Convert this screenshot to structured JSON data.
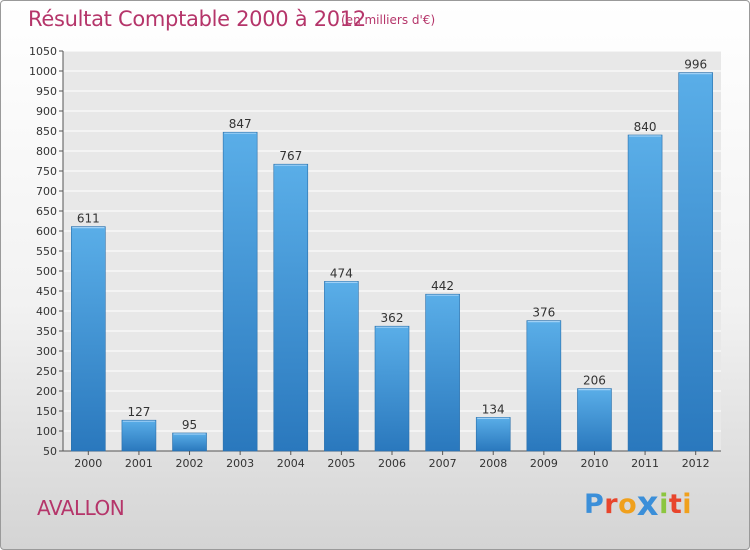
{
  "chart_data": {
    "type": "bar",
    "title": "Résultat Comptable 2000 à 2012",
    "subtitle": "(en milliers d'€)",
    "categories": [
      "2000",
      "2001",
      "2002",
      "2003",
      "2004",
      "2005",
      "2006",
      "2007",
      "2008",
      "2009",
      "2010",
      "2011",
      "2012"
    ],
    "values": [
      611,
      127,
      95,
      847,
      767,
      474,
      362,
      442,
      134,
      376,
      206,
      840,
      996
    ],
    "ylim": [
      50,
      1050
    ],
    "yticks": [
      50,
      100,
      150,
      200,
      250,
      300,
      350,
      400,
      450,
      500,
      550,
      600,
      650,
      700,
      750,
      800,
      850,
      900,
      950,
      1000,
      1050
    ],
    "grid": true,
    "bar_color": "#3a8fd4",
    "title_color": "#b5356a"
  },
  "footer": {
    "location": "AVALLON"
  },
  "logo": {
    "text": "Proxiti",
    "letters": [
      "P",
      "r",
      "o",
      "x",
      "i",
      "t",
      "i"
    ],
    "colors": [
      "#3b8fd9",
      "#e8452c",
      "#f0a01c",
      "#3b8fd9",
      "#8cc63f",
      "#e8452c",
      "#f0a01c"
    ]
  }
}
